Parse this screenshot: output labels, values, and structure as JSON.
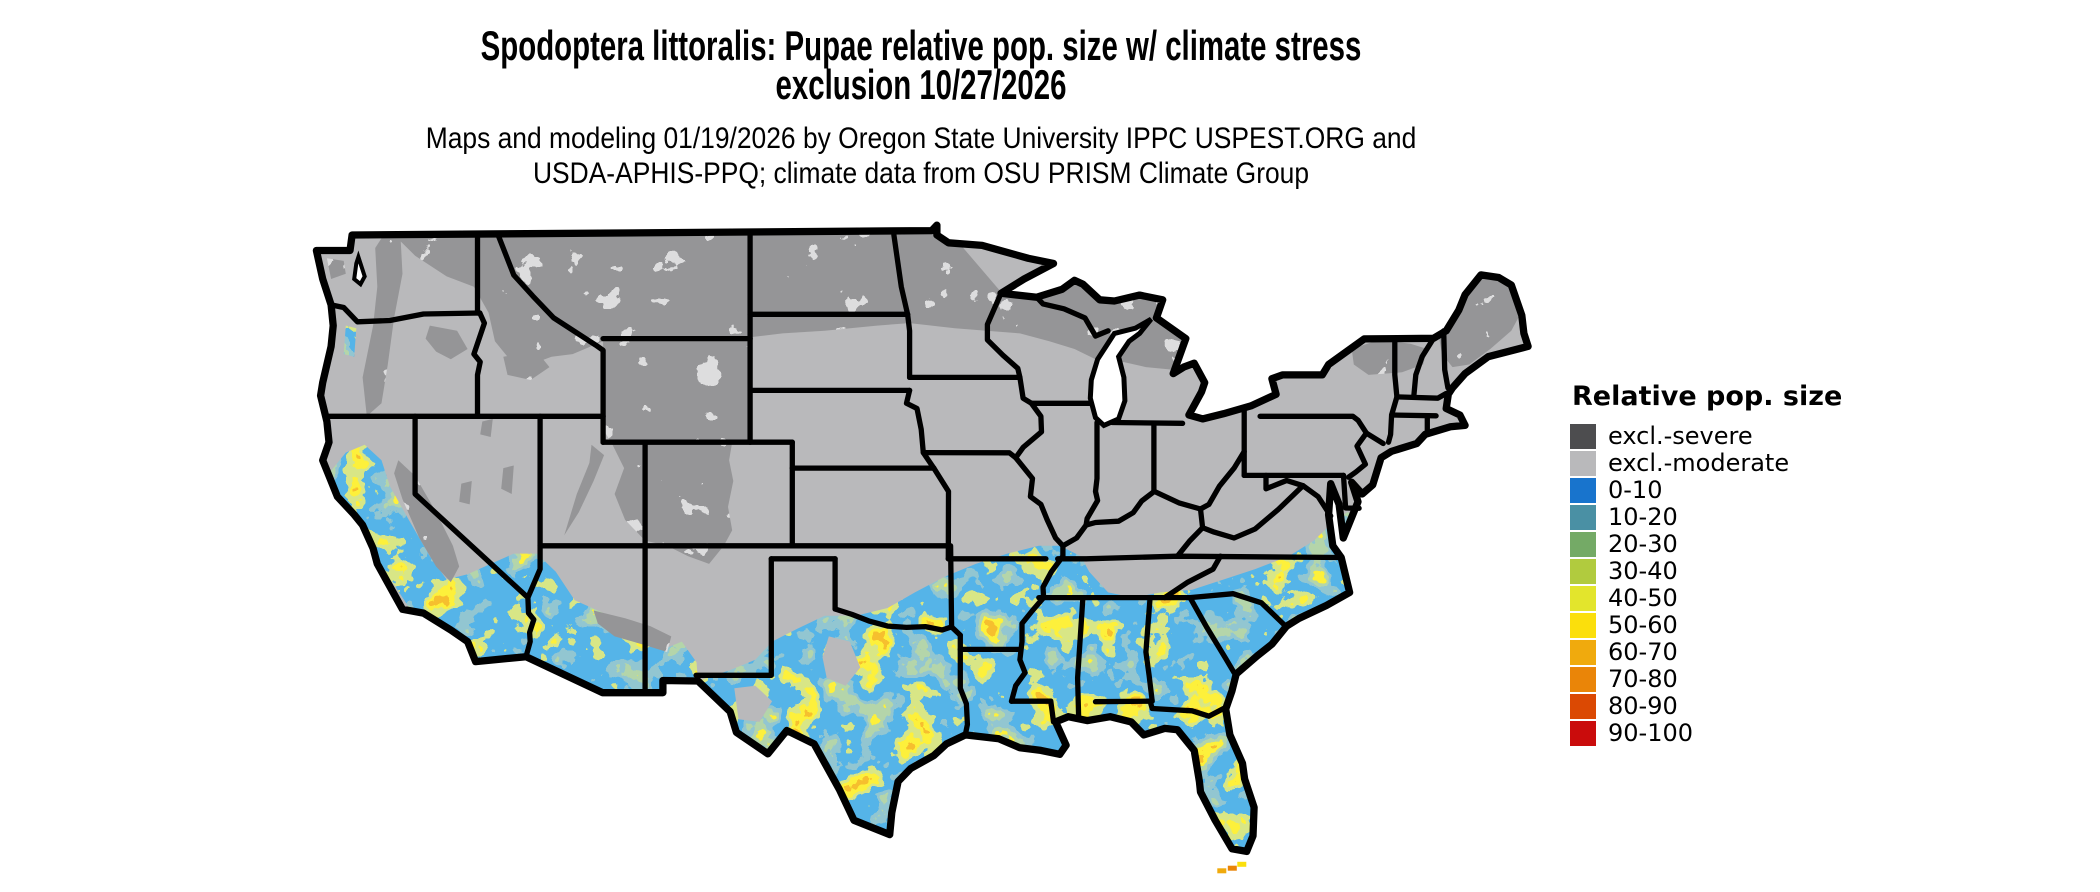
{
  "title": {
    "line1": "Spodoptera littoralis: Pupae relative pop. size w/ climate stress",
    "line2": "exclusion 10/27/2026"
  },
  "subtitle": {
    "line1": "Maps and modeling 01/19/2026 by Oregon State University IPPC USPEST.ORG and",
    "line2": "USDA-APHIS-PPQ; climate data from OSU PRISM Climate Group"
  },
  "legend": {
    "title": "Relative pop. size",
    "items": [
      {
        "label": "excl.-severe",
        "color": "#4d4d4f"
      },
      {
        "label": "excl.-moderate",
        "color": "#b9b9bb"
      },
      {
        "label": "0-10",
        "color": "#1874cd"
      },
      {
        "label": "10-20",
        "color": "#4a90a4"
      },
      {
        "label": "20-30",
        "color": "#74aa66"
      },
      {
        "label": "30-40",
        "color": "#b1cb3e"
      },
      {
        "label": "40-50",
        "color": "#e3e52c"
      },
      {
        "label": "50-60",
        "color": "#fbdf0c"
      },
      {
        "label": "60-70",
        "color": "#f0aa0d"
      },
      {
        "label": "70-80",
        "color": "#ea8508"
      },
      {
        "label": "80-90",
        "color": "#db4903"
      },
      {
        "label": "90-100",
        "color": "#ca0c0c"
      }
    ]
  },
  "map": {
    "area": "Contiguous United States",
    "style": "raster choropleth with state borders",
    "border_color": "#000000",
    "background": "#ffffff"
  }
}
